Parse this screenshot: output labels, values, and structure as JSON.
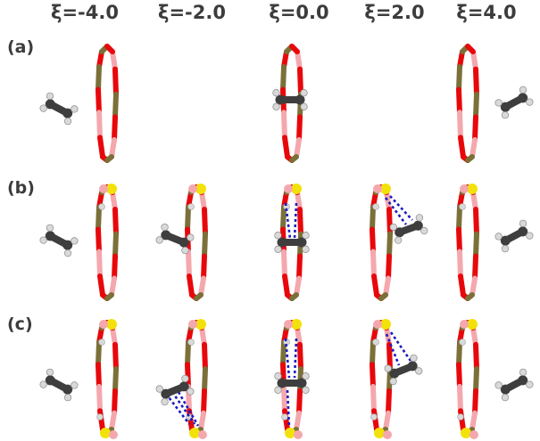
{
  "columns": [
    {
      "xi_symbol": "ξ",
      "xi_value": "=-4.0"
    },
    {
      "xi_symbol": "ξ",
      "xi_value": "=-2.0"
    },
    {
      "xi_symbol": "ξ",
      "xi_value": "=0.0"
    },
    {
      "xi_symbol": "ξ",
      "xi_value": "=2.0"
    },
    {
      "xi_symbol": "ξ",
      "xi_value": "=4.0"
    }
  ],
  "rows": [
    {
      "label": "(a)"
    },
    {
      "label": "(b)"
    },
    {
      "label": "(c)"
    }
  ],
  "colors": {
    "ring_red": "#e8070b",
    "ring_pink": "#f4a8ae",
    "ring_olive": "#7a7038",
    "ring_yellow": "#f2e20a",
    "ethylene_carbon": "#3e3e3e",
    "ethylene_hydrogen": "#d9d9d9",
    "bond_dotted": "#1b1bc0"
  }
}
